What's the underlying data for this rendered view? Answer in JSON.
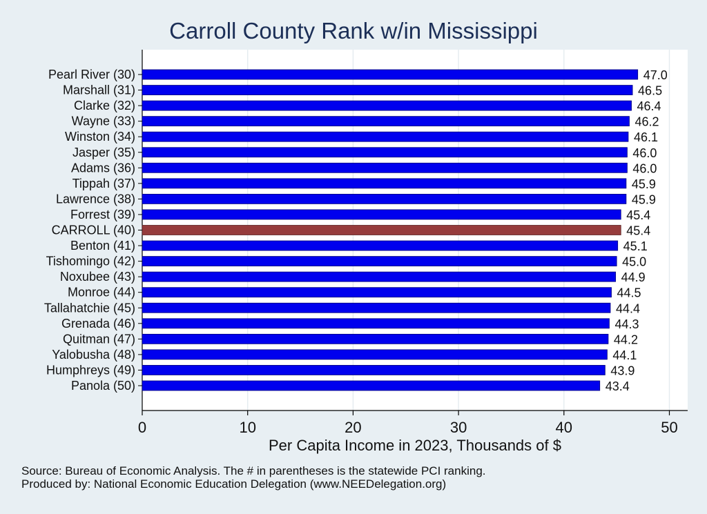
{
  "chart_data": {
    "type": "bar",
    "orientation": "horizontal",
    "title": "Carroll County Rank w/in Mississippi",
    "xlabel": "Per Capita Income in 2023, Thousands of $",
    "xlim": [
      0,
      51.5
    ],
    "xticks": [
      "0",
      "10",
      "20",
      "30",
      "40",
      "50"
    ],
    "xtick_values": [
      0,
      10,
      20,
      30,
      40,
      50
    ],
    "grid": "vertical",
    "colors": {
      "default": "#0000ee",
      "highlight": "#963c3c",
      "background": "#e8eff3",
      "plot_bg": "#ffffff"
    },
    "categories": [
      "Pearl River (30)",
      "Marshall (31)",
      "Clarke (32)",
      "Wayne (33)",
      "Winston (34)",
      "Jasper (35)",
      "Adams (36)",
      "Tippah (37)",
      "Lawrence (38)",
      "Forrest (39)",
      "CARROLL (40)",
      "Benton (41)",
      "Tishomingo (42)",
      "Noxubee (43)",
      "Monroe (44)",
      "Tallahatchie (45)",
      "Grenada (46)",
      "Quitman (47)",
      "Yalobusha (48)",
      "Humphreys (49)",
      "Panola (50)"
    ],
    "values": [
      47.0,
      46.5,
      46.4,
      46.2,
      46.1,
      46.0,
      46.0,
      45.9,
      45.9,
      45.4,
      45.4,
      45.1,
      45.0,
      44.9,
      44.5,
      44.4,
      44.3,
      44.2,
      44.1,
      43.9,
      43.4
    ],
    "value_labels": [
      "47.0",
      "46.5",
      "46.4",
      "46.2",
      "46.1",
      "46.0",
      "46.0",
      "45.9",
      "45.9",
      "45.4",
      "45.4",
      "45.1",
      "45.0",
      "44.9",
      "44.5",
      "44.4",
      "44.3",
      "44.2",
      "44.1",
      "43.9",
      "43.4"
    ],
    "highlight": "CARROLL (40)"
  },
  "notes": {
    "source": "Source: Bureau of Economic Analysis. The # in parentheses is the statewide PCI ranking.",
    "producer": "Produced by: National Economic Education Delegation (www.NEEDelegation.org)"
  }
}
